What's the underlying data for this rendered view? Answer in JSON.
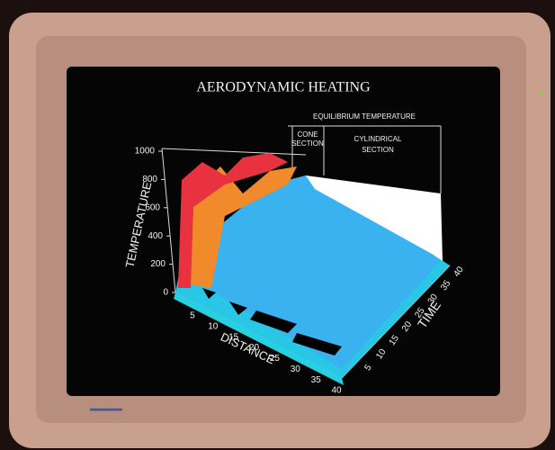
{
  "title": "AERODYNAMIC HEATING",
  "legend_header": "EQUILIBRIUM TEMPERATURE",
  "cone_section": [
    "CONE",
    "SECTION"
  ],
  "cylindrical_section": [
    "CYLINDRICAL",
    "SECTION"
  ],
  "temperature_axis": {
    "label": "TEMPERATURE",
    "ticks": [
      0,
      200,
      400,
      600,
      800,
      1000
    ]
  },
  "distance_axis": {
    "label": "DISTANCE",
    "ticks": [
      5,
      10,
      15,
      20,
      25,
      30,
      35,
      40
    ]
  },
  "time_axis": {
    "label": "TIME",
    "ticks": [
      5,
      10,
      15,
      20,
      25,
      30,
      35,
      40
    ]
  }
}
